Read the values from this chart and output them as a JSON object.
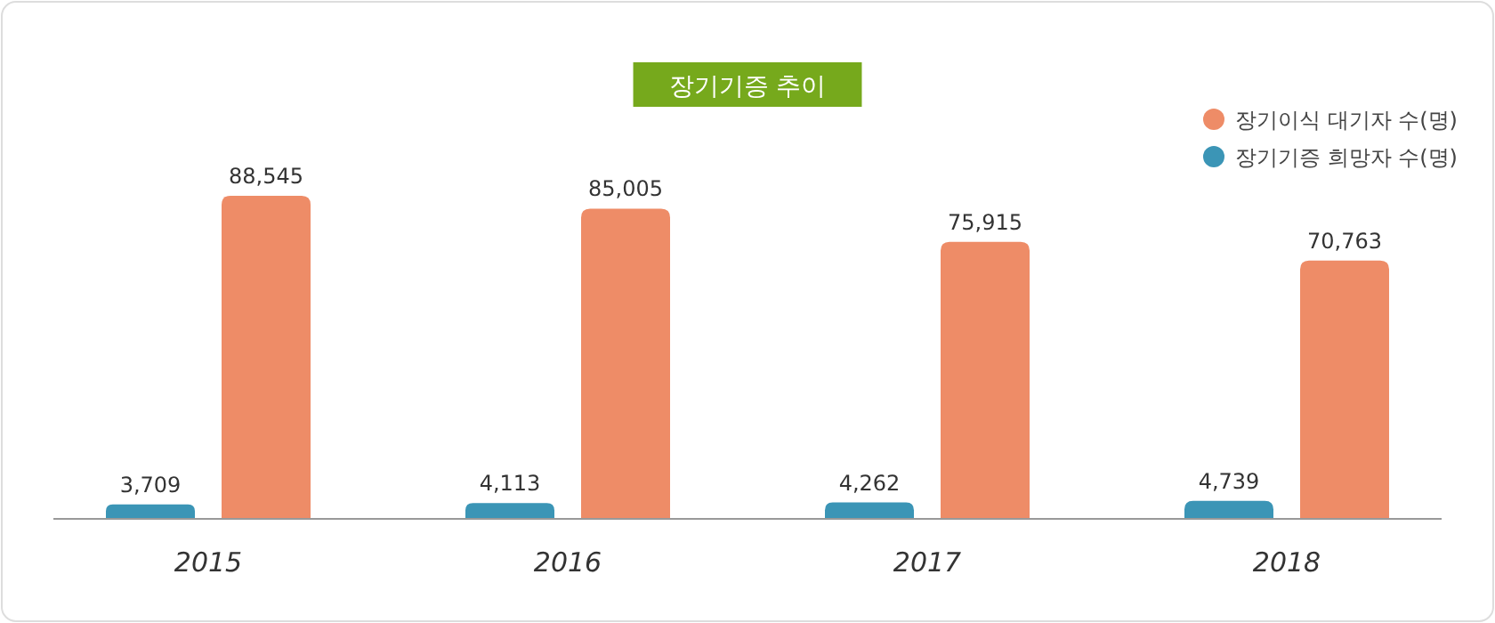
{
  "chart_data": {
    "type": "bar",
    "title": "장기기증 추이",
    "categories": [
      "2015",
      "2016",
      "2017",
      "2018"
    ],
    "series": [
      {
        "name": "장기기증 희망자 수(명)",
        "color": "#3b95b6",
        "values": [
          3709,
          4113,
          4262,
          4739
        ],
        "value_labels": [
          "3,709",
          "4,113",
          "4,262",
          "4,739"
        ]
      },
      {
        "name": "장기이식 대기자 수(명)",
        "color": "#ee8c67",
        "values": [
          88545,
          85005,
          75915,
          70763
        ],
        "value_labels": [
          "88,545",
          "85,005",
          "75,915",
          "70,763"
        ]
      }
    ],
    "legend": "top right"
  }
}
